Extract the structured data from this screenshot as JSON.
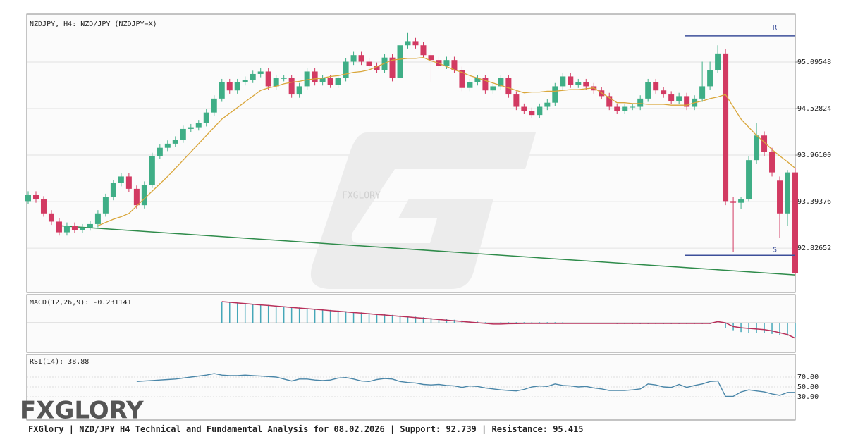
{
  "chart_data": {
    "type": "candlestick",
    "title": "NZDJPY, H4: NZD/JPY (NZDJPY=X)",
    "watermark": "FXGLORY",
    "logo": "FXGLORY",
    "candles": {
      "open": [
        93.4,
        93.48,
        93.42,
        93.25,
        93.15,
        93.02,
        93.1,
        93.05,
        93.08,
        93.12,
        93.25,
        93.45,
        93.62,
        93.7,
        93.55,
        93.35,
        93.6,
        93.95,
        94.05,
        94.1,
        94.15,
        94.28,
        94.3,
        94.35,
        94.48,
        94.65,
        94.85,
        94.75,
        94.85,
        94.88,
        94.95,
        94.98,
        94.8,
        94.9,
        94.9,
        94.7,
        94.8,
        94.98,
        94.85,
        94.9,
        94.82,
        94.9,
        95.1,
        95.18,
        95.1,
        95.05,
        95.0,
        95.15,
        94.9,
        95.3,
        95.35,
        95.3,
        95.18,
        95.12,
        95.05,
        95.12,
        95.0,
        94.78,
        94.85,
        94.9,
        94.75,
        94.8,
        94.9,
        94.7,
        94.55,
        94.5,
        94.45,
        94.55,
        94.6,
        94.8,
        94.92,
        94.82,
        94.85,
        94.8,
        94.75,
        94.68,
        94.55,
        94.5,
        94.55,
        94.55,
        94.65,
        94.85,
        94.75,
        94.7,
        94.62,
        94.68,
        94.55,
        94.65,
        94.8,
        95.0,
        95.2,
        93.4,
        93.38,
        93.42,
        93.9,
        94.2,
        94.0,
        93.65,
        93.25,
        93.75
      ],
      "high": [
        93.52,
        93.52,
        93.46,
        93.29,
        93.19,
        93.14,
        93.14,
        93.12,
        93.16,
        93.29,
        93.49,
        93.66,
        93.74,
        93.74,
        93.59,
        93.64,
        93.99,
        94.09,
        94.14,
        94.19,
        94.32,
        94.34,
        94.39,
        94.52,
        94.69,
        94.89,
        94.89,
        94.89,
        94.92,
        94.99,
        95.02,
        95.02,
        94.94,
        94.94,
        94.94,
        94.84,
        95.02,
        95.02,
        94.94,
        94.94,
        94.94,
        95.14,
        95.22,
        95.22,
        95.14,
        95.09,
        95.19,
        95.19,
        95.34,
        95.45,
        95.39,
        95.34,
        95.22,
        95.16,
        95.16,
        95.16,
        95.04,
        94.89,
        94.94,
        94.94,
        94.84,
        94.94,
        94.94,
        94.74,
        94.59,
        94.54,
        94.59,
        94.64,
        94.84,
        94.96,
        94.96,
        94.89,
        94.89,
        94.84,
        94.79,
        94.72,
        94.59,
        94.59,
        94.59,
        94.69,
        94.89,
        94.89,
        94.79,
        94.74,
        94.72,
        94.72,
        94.69,
        95.1,
        95.1,
        95.3,
        95.25,
        93.45,
        93.45,
        93.95,
        94.35,
        94.25,
        94.05,
        93.7,
        93.78,
        93.8
      ],
      "low": [
        93.36,
        93.38,
        93.21,
        93.11,
        92.98,
        92.98,
        93.01,
        93.01,
        93.04,
        93.08,
        93.21,
        93.41,
        93.58,
        93.51,
        93.31,
        93.31,
        93.56,
        93.91,
        94.01,
        94.06,
        94.11,
        94.24,
        94.26,
        94.31,
        94.44,
        94.61,
        94.71,
        94.71,
        94.81,
        94.84,
        94.91,
        94.76,
        94.76,
        94.86,
        94.66,
        94.66,
        94.76,
        94.81,
        94.81,
        94.78,
        94.78,
        94.86,
        95.06,
        95.06,
        95.01,
        94.96,
        94.96,
        94.86,
        94.86,
        95.26,
        95.26,
        95.14,
        94.85,
        95.01,
        95.01,
        94.96,
        94.74,
        94.74,
        94.81,
        94.71,
        94.71,
        94.76,
        94.66,
        94.51,
        94.46,
        94.41,
        94.41,
        94.51,
        94.56,
        94.76,
        94.78,
        94.78,
        94.76,
        94.71,
        94.64,
        94.51,
        94.46,
        94.46,
        94.51,
        94.51,
        94.61,
        94.71,
        94.66,
        94.58,
        94.58,
        94.51,
        94.51,
        94.61,
        94.76,
        94.96,
        93.35,
        92.78,
        93.3,
        93.4,
        93.85,
        93.95,
        93.7,
        92.95,
        93.1,
        92.5
      ],
      "close": [
        93.48,
        93.42,
        93.25,
        93.15,
        93.02,
        93.1,
        93.05,
        93.08,
        93.12,
        93.25,
        93.45,
        93.62,
        93.7,
        93.55,
        93.35,
        93.6,
        93.95,
        94.05,
        94.1,
        94.15,
        94.28,
        94.3,
        94.35,
        94.48,
        94.65,
        94.85,
        94.75,
        94.85,
        94.88,
        94.95,
        94.98,
        94.8,
        94.9,
        94.9,
        94.7,
        94.8,
        94.98,
        94.85,
        94.9,
        94.82,
        94.9,
        95.1,
        95.18,
        95.1,
        95.05,
        95.0,
        95.15,
        94.9,
        95.3,
        95.35,
        95.3,
        95.18,
        95.12,
        95.05,
        95.12,
        95.0,
        94.78,
        94.85,
        94.9,
        94.75,
        94.8,
        94.9,
        94.7,
        94.55,
        94.5,
        94.45,
        94.55,
        94.6,
        94.8,
        94.92,
        94.82,
        94.85,
        94.8,
        94.75,
        94.68,
        94.55,
        94.5,
        94.55,
        94.55,
        94.65,
        94.85,
        94.75,
        94.7,
        94.62,
        94.68,
        94.55,
        94.65,
        94.8,
        95.0,
        95.2,
        93.4,
        93.38,
        93.42,
        93.9,
        94.2,
        94.0,
        93.75,
        93.25,
        93.75,
        92.52
      ]
    },
    "up_color": "#3fae86",
    "down_color": "#d23a62",
    "ma": [
      null,
      null,
      null,
      null,
      null,
      null,
      null,
      null,
      null,
      93.1,
      93.14,
      93.18,
      93.21,
      93.25,
      93.34,
      93.43,
      93.52,
      93.61,
      93.7,
      93.8,
      93.9,
      94.0,
      94.1,
      94.2,
      94.3,
      94.4,
      94.47,
      94.54,
      94.61,
      94.68,
      94.75,
      94.78,
      94.8,
      94.83,
      94.85,
      94.86,
      94.88,
      94.89,
      94.9,
      94.92,
      94.93,
      94.95,
      94.97,
      94.98,
      95.0,
      95.04,
      95.08,
      95.12,
      95.13,
      95.14,
      95.14,
      95.15,
      95.11,
      95.08,
      95.04,
      95.0,
      94.97,
      94.93,
      94.9,
      94.87,
      94.84,
      94.81,
      94.78,
      94.75,
      94.72,
      94.73,
      94.73,
      94.74,
      94.74,
      94.75,
      94.76,
      94.76,
      94.77,
      94.78,
      94.72,
      94.66,
      94.6,
      94.6,
      94.59,
      94.59,
      94.58,
      94.58,
      94.58,
      94.57,
      94.57,
      94.57,
      94.6,
      94.62,
      94.65,
      94.67,
      94.7,
      94.55,
      94.4,
      94.3,
      94.2,
      94.12,
      94.03,
      93.95,
      93.88,
      93.8
    ],
    "ma_color": "#d9a63a",
    "ylim": [
      92.286,
      95.68
    ],
    "yticks": [
      95.09548,
      94.52824,
      {
        "value": 93.961,
        "label": "93.96100"
      },
      93.39376,
      92.82652
    ],
    "grid": true,
    "resistance": {
      "label": "R",
      "value": 95.415
    },
    "support": {
      "label": "S",
      "value": 92.739
    },
    "level_color": "#3c4f9a",
    "trendline": {
      "x": [
        4,
        99
      ],
      "y": [
        93.1,
        92.5
      ],
      "color": "#2e8b4a"
    },
    "macd": {
      "label": "MACD(12,26,9):",
      "ylim": [
        -0.48,
        0.46
      ],
      "histogram": [
        null,
        null,
        null,
        null,
        null,
        null,
        null,
        null,
        null,
        null,
        null,
        null,
        null,
        null,
        null,
        null,
        null,
        null,
        null,
        null,
        null,
        null,
        null,
        null,
        null,
        0.345,
        0.34,
        0.33,
        0.32,
        0.31,
        0.3,
        0.29,
        0.28,
        0.27,
        0.26,
        0.25,
        0.24,
        0.23,
        0.22,
        0.21,
        0.2,
        0.19,
        0.18,
        0.17,
        0.16,
        0.15,
        0.14,
        0.13,
        0.12,
        0.11,
        0.1,
        0.09,
        0.08,
        0.07,
        0.06,
        0.05,
        0.04,
        0.03,
        0.02,
        0.01,
        0.0,
        0.01,
        0.01,
        0.01,
        0.01,
        0.01,
        0.01,
        0.01,
        0.01,
        0.01,
        -0.01,
        -0.01,
        -0.01,
        -0.01,
        -0.01,
        -0.01,
        -0.02,
        -0.02,
        -0.02,
        -0.02,
        -0.02,
        -0.02,
        -0.02,
        -0.02,
        -0.02,
        -0.02,
        -0.02,
        -0.02,
        -0.02,
        -0.01,
        -0.08,
        -0.12,
        -0.15,
        -0.16,
        -0.16,
        -0.17,
        -0.18,
        -0.2,
        -0.21,
        -0.231141
      ],
      "signal": [
        null,
        null,
        null,
        null,
        null,
        null,
        null,
        null,
        null,
        null,
        null,
        null,
        null,
        null,
        null,
        null,
        null,
        null,
        null,
        null,
        null,
        null,
        null,
        null,
        null,
        0.345,
        0.335,
        0.324,
        0.314,
        0.303,
        0.293,
        0.283,
        0.272,
        0.262,
        0.251,
        0.241,
        0.231,
        0.22,
        0.21,
        0.199,
        0.189,
        0.179,
        0.168,
        0.158,
        0.147,
        0.137,
        0.127,
        0.116,
        0.106,
        0.095,
        0.085,
        0.075,
        0.064,
        0.054,
        0.043,
        0.033,
        0.023,
        0.012,
        0.002,
        -0.009,
        -0.02,
        -0.02,
        -0.015,
        -0.012,
        -0.01,
        -0.01,
        -0.01,
        -0.01,
        -0.01,
        -0.01,
        -0.01,
        -0.01,
        -0.01,
        -0.01,
        -0.01,
        -0.01,
        -0.01,
        -0.01,
        -0.01,
        -0.01,
        -0.01,
        -0.01,
        -0.01,
        -0.01,
        -0.01,
        -0.01,
        -0.01,
        -0.01,
        -0.01,
        0.02,
        0.0,
        -0.06,
        -0.08,
        -0.09,
        -0.1,
        -0.11,
        -0.13,
        -0.16,
        -0.19,
        -0.25
      ],
      "histogram_color": "#45a7b8",
      "signal_color": "#b8305a"
    },
    "rsi": {
      "label": "RSI(14):",
      "ylim": [
        -17,
        115.7
      ],
      "yticks": [
        {
          "value": 70,
          "label": "70.00"
        },
        {
          "value": 50,
          "label": "50.00"
        },
        {
          "value": 30,
          "label": "30.00"
        }
      ],
      "values": [
        null,
        null,
        null,
        null,
        null,
        null,
        null,
        null,
        null,
        null,
        null,
        null,
        null,
        null,
        61,
        62,
        63,
        64,
        65,
        66,
        68,
        70,
        72,
        74,
        77,
        74,
        73,
        73,
        74,
        73,
        72,
        71,
        70,
        66,
        62,
        66,
        66,
        64,
        63,
        64,
        68,
        69,
        66,
        62,
        61,
        65,
        67,
        66,
        61,
        59,
        58,
        55,
        54,
        55,
        53,
        52,
        49,
        52,
        51,
        48,
        46,
        44,
        43,
        42,
        45,
        50,
        52,
        51,
        56,
        53,
        52,
        50,
        51,
        48,
        46,
        43,
        43,
        43,
        44,
        46,
        56,
        54,
        50,
        49,
        55,
        49,
        53,
        56,
        61,
        62,
        31,
        31,
        40,
        44,
        42,
        40,
        36,
        33,
        39,
        38.88
      ],
      "color": "#4a86a8"
    },
    "footer": {
      "text": "FXGlory | NZD/JPY H4 Technical and Fundamental Analysis for 08.02.2026 | Support:",
      "resistance_label": "| Resistance:"
    }
  }
}
